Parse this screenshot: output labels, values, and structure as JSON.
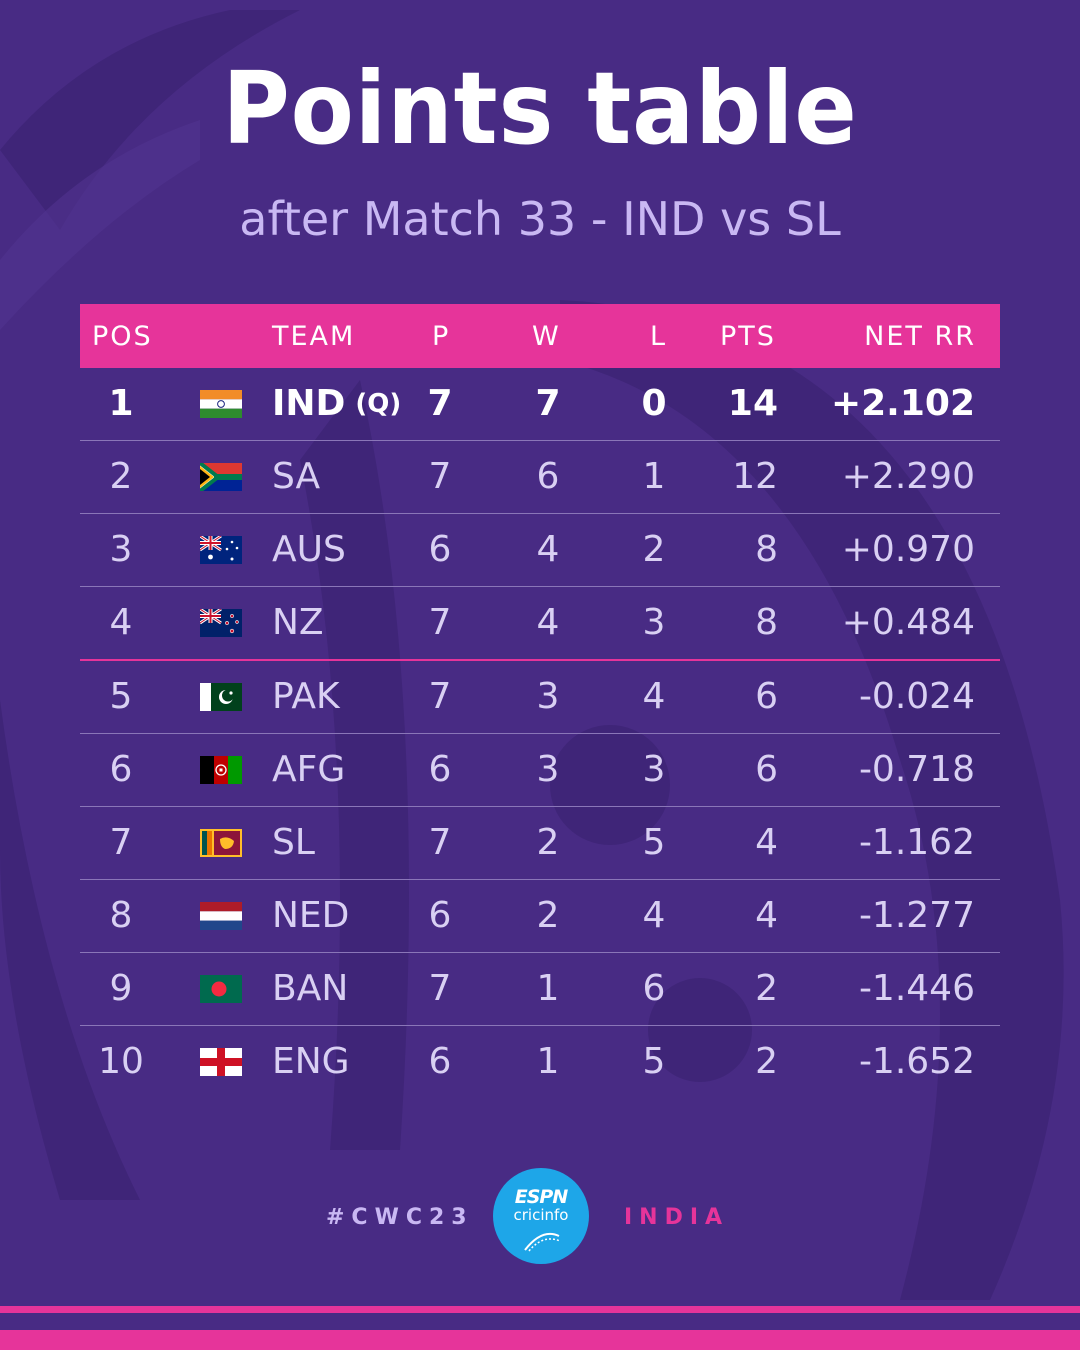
{
  "header": {
    "title": "Points table",
    "subtitle": "after Match 33 - IND vs SL"
  },
  "table": {
    "columns": [
      "POS",
      "TEAM",
      "P",
      "W",
      "L",
      "PTS",
      "NET RR"
    ],
    "rows": [
      {
        "pos": "1",
        "team": "IND",
        "tag": "(Q)",
        "flag": "india-flag-icon",
        "p": "7",
        "w": "7",
        "l": "0",
        "pts": "14",
        "nrr": "+2.102"
      },
      {
        "pos": "2",
        "team": "SA",
        "tag": "",
        "flag": "south-africa-flag-icon",
        "p": "7",
        "w": "6",
        "l": "1",
        "pts": "12",
        "nrr": "+2.290"
      },
      {
        "pos": "3",
        "team": "AUS",
        "tag": "",
        "flag": "australia-flag-icon",
        "p": "6",
        "w": "4",
        "l": "2",
        "pts": "8",
        "nrr": "+0.970"
      },
      {
        "pos": "4",
        "team": "NZ",
        "tag": "",
        "flag": "new-zealand-flag-icon",
        "p": "7",
        "w": "4",
        "l": "3",
        "pts": "8",
        "nrr": "+0.484"
      },
      {
        "pos": "5",
        "team": "PAK",
        "tag": "",
        "flag": "pakistan-flag-icon",
        "p": "7",
        "w": "3",
        "l": "4",
        "pts": "6",
        "nrr": "-0.024"
      },
      {
        "pos": "6",
        "team": "AFG",
        "tag": "",
        "flag": "afghanistan-flag-icon",
        "p": "6",
        "w": "3",
        "l": "3",
        "pts": "6",
        "nrr": "-0.718"
      },
      {
        "pos": "7",
        "team": "SL",
        "tag": "",
        "flag": "sri-lanka-flag-icon",
        "p": "7",
        "w": "2",
        "l": "5",
        "pts": "4",
        "nrr": "-1.162"
      },
      {
        "pos": "8",
        "team": "NED",
        "tag": "",
        "flag": "netherlands-flag-icon",
        "p": "6",
        "w": "2",
        "l": "4",
        "pts": "4",
        "nrr": "-1.277"
      },
      {
        "pos": "9",
        "team": "BAN",
        "tag": "",
        "flag": "bangladesh-flag-icon",
        "p": "7",
        "w": "1",
        "l": "6",
        "pts": "2",
        "nrr": "-1.446"
      },
      {
        "pos": "10",
        "team": "ENG",
        "tag": "",
        "flag": "england-flag-icon",
        "p": "6",
        "w": "1",
        "l": "5",
        "pts": "2",
        "nrr": "-1.652"
      }
    ]
  },
  "footer": {
    "hashtag": "#CWC23",
    "logo_line1": "ESPN",
    "logo_line2": "cricinfo",
    "country": "INDIA"
  },
  "colors": {
    "background": "#482b84",
    "accent": "#e6349a",
    "subtitle": "#c9b8f3",
    "logo": "#1ea6e8"
  }
}
